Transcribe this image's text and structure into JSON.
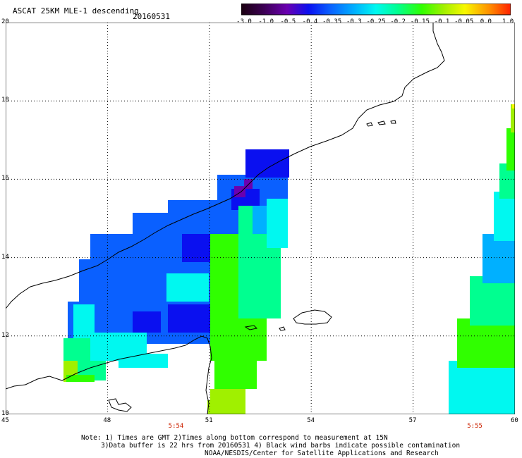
{
  "header": {
    "title": "ASCAT 25KM MLE-1 descending",
    "date": "20160531"
  },
  "colorbar": {
    "labels": [
      "-3.0",
      "-1.0",
      "-0.5",
      "-0.4",
      "-0.35",
      "-0.3",
      "-0.25",
      "-0.2",
      "-0.15",
      "-0.1",
      "-0.05",
      "0.0",
      "1.0"
    ],
    "colors": [
      "#1a0010",
      "#3a0050",
      "#6a00b0",
      "#0a10f0",
      "#0a60ff",
      "#00b0ff",
      "#00f8f0",
      "#00ff90",
      "#30ff00",
      "#a0f000",
      "#f8f800",
      "#ff9000",
      "#ff2000"
    ]
  },
  "map": {
    "lat_labels": [
      "20",
      "18",
      "16",
      "14",
      "12",
      "10"
    ],
    "lon_labels": [
      "45",
      "48",
      "51",
      "54",
      "57",
      "60"
    ],
    "lat_range": [
      10,
      20
    ],
    "lon_range": [
      45,
      60
    ],
    "times": [
      {
        "label": "5:54",
        "lon": 50.0
      },
      {
        "label": "5:55",
        "lon": 58.8
      }
    ],
    "time_color": "#cc2200",
    "grid": "dotted"
  },
  "notes": {
    "line1": "Note: 1) Times are GMT 2)Times along bottom correspond to measurement at 15N",
    "line2": "3)Data buffer is 22 hrs from 20160531 4) Black wind barbs indicate possible contamination",
    "line3": "NOAA/NESDIS/Center for Satellite Applications and Research"
  }
}
